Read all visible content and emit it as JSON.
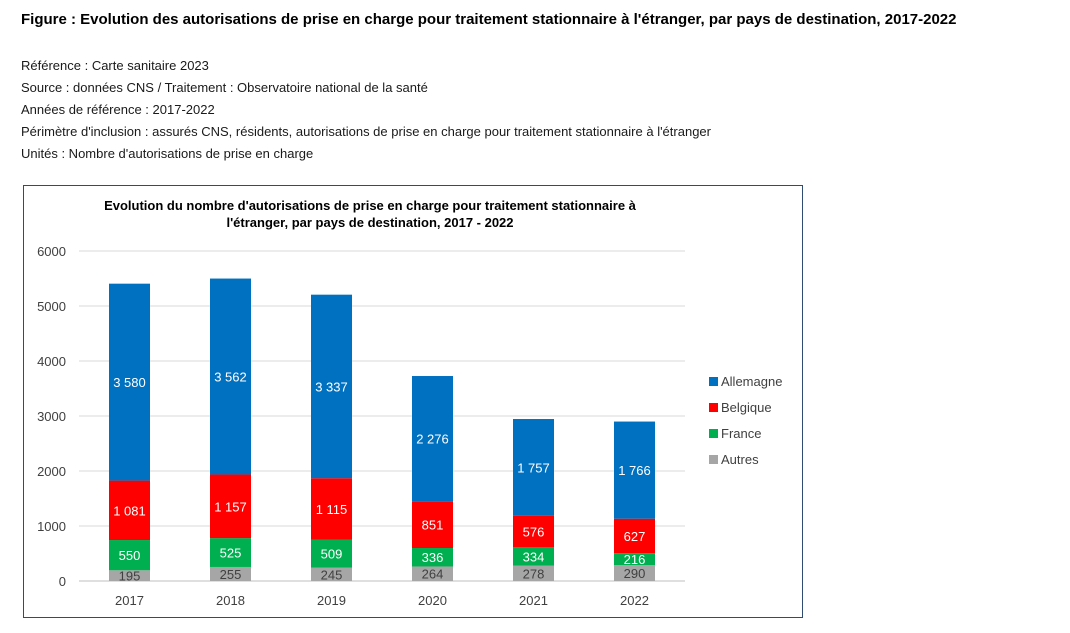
{
  "figure_title": "Figure : Evolution des autorisations de prise en charge pour traitement stationnaire à l'étranger, par pays de destination, 2017-2022",
  "meta": {
    "reference": "Référence : Carte sanitaire 2023",
    "source": "Source : données CNS / Traitement : Observatoire national de la santé",
    "years": "Années de référence : 2017-2022",
    "scope": "Périmètre d'inclusion : assurés CNS, résidents, autorisations de prise en charge pour traitement stationnaire à l'étranger",
    "units": "Unités : Nombre d'autorisations de prise en charge"
  },
  "chart_data": {
    "type": "bar",
    "stacked": true,
    "title": "Evolution du nombre d'autorisations de prise en charge pour traitement stationnaire à l'étranger, par pays de destination, 2017 - 2022",
    "title_lines": [
      "Evolution du nombre d'autorisations de prise en charge pour traitement stationnaire à",
      "l'étranger, par pays de destination, 2017 - 2022"
    ],
    "xlabel": "",
    "ylabel": "",
    "ylim": [
      0,
      6000
    ],
    "yticks": [
      0,
      1000,
      2000,
      3000,
      4000,
      5000,
      6000
    ],
    "ytick_labels": [
      "0",
      "1000",
      "2000",
      "3000",
      "4000",
      "5000",
      "6000"
    ],
    "grid": true,
    "legend_position": "right",
    "categories": [
      "2017",
      "2018",
      "2019",
      "2020",
      "2021",
      "2022"
    ],
    "series": [
      {
        "name": "Autres",
        "color": "#a6a6a6",
        "values": [
          195,
          255,
          245,
          264,
          278,
          290
        ],
        "labels": [
          "195",
          "255",
          "245",
          "264",
          "278",
          "290"
        ]
      },
      {
        "name": "France",
        "color": "#00b050",
        "values": [
          550,
          525,
          509,
          336,
          334,
          216
        ],
        "labels": [
          "550",
          "525",
          "509",
          "336",
          "334",
          "216"
        ]
      },
      {
        "name": "Belgique",
        "color": "#ff0000",
        "values": [
          1081,
          1157,
          1115,
          851,
          576,
          627
        ],
        "labels": [
          "1 081",
          "1 157",
          "1 115",
          "851",
          "576",
          "627"
        ]
      },
      {
        "name": "Allemagne",
        "color": "#0070c0",
        "values": [
          3580,
          3562,
          3337,
          2276,
          1757,
          1766
        ],
        "labels": [
          "3 580",
          "3 562",
          "3 337",
          "2 276",
          "1 757",
          "1 766"
        ]
      }
    ],
    "legend_order": [
      "Allemagne",
      "Belgique",
      "France",
      "Autres"
    ]
  }
}
